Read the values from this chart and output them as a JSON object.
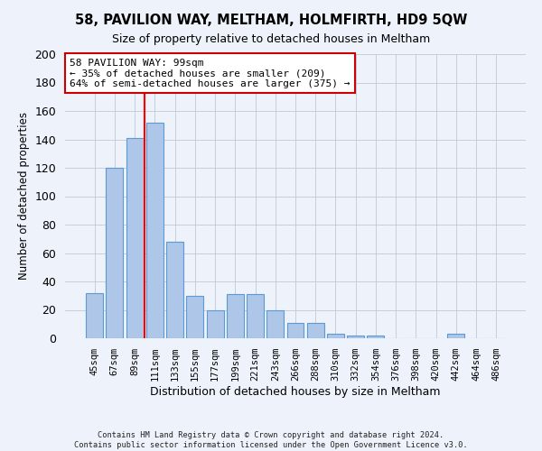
{
  "title1": "58, PAVILION WAY, MELTHAM, HOLMFIRTH, HD9 5QW",
  "title2": "Size of property relative to detached houses in Meltham",
  "xlabel": "Distribution of detached houses by size in Meltham",
  "ylabel": "Number of detached properties",
  "footer1": "Contains HM Land Registry data © Crown copyright and database right 2024.",
  "footer2": "Contains public sector information licensed under the Open Government Licence v3.0.",
  "bar_labels": [
    "45sqm",
    "67sqm",
    "89sqm",
    "111sqm",
    "133sqm",
    "155sqm",
    "177sqm",
    "199sqm",
    "221sqm",
    "243sqm",
    "266sqm",
    "288sqm",
    "310sqm",
    "332sqm",
    "354sqm",
    "376sqm",
    "398sqm",
    "420sqm",
    "442sqm",
    "464sqm",
    "486sqm"
  ],
  "bar_values": [
    32,
    120,
    141,
    152,
    68,
    30,
    20,
    31,
    31,
    20,
    11,
    11,
    3,
    2,
    2,
    0,
    0,
    0,
    3,
    0,
    0
  ],
  "bar_color": "#aec6e8",
  "bar_edge_color": "#5b9bd5",
  "grid_color": "#c0c8d8",
  "background_color": "#eef2fb",
  "red_line_x": 2.5,
  "annotation_line1": "58 PAVILION WAY: 99sqm",
  "annotation_line2": "← 35% of detached houses are smaller (209)",
  "annotation_line3": "64% of semi-detached houses are larger (375) →",
  "annotation_box_color": "#ffffff",
  "annotation_box_edge": "#cc0000",
  "ylim": [
    0,
    200
  ],
  "yticks": [
    0,
    20,
    40,
    60,
    80,
    100,
    120,
    140,
    160,
    180,
    200
  ]
}
